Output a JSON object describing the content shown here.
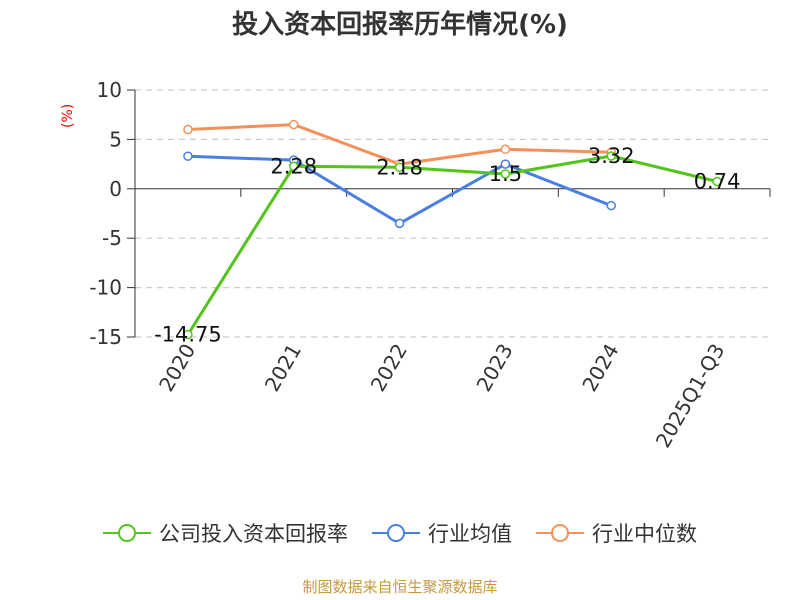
{
  "chart_data": {
    "type": "line",
    "title": "投入资本回报率历年情况(%)",
    "ylabel": "(%)",
    "categories": [
      "2020",
      "2021",
      "2022",
      "2023",
      "2024",
      "2025Q1-Q3"
    ],
    "ylim": [
      -15,
      10
    ],
    "yticks": [
      10,
      5,
      0,
      -5,
      -10,
      -15
    ],
    "grid": true,
    "legend_position": "bottom",
    "series": [
      {
        "name": "公司投入资本回报率",
        "color": "#52c41a",
        "values": [
          -14.75,
          2.28,
          2.18,
          1.5,
          3.32,
          0.74
        ],
        "labels": [
          "-14.75",
          "2.28",
          "2.18",
          "1.5",
          "3.32",
          "0.74"
        ]
      },
      {
        "name": "行业均值",
        "color": "#4a7fe0",
        "values": [
          3.3,
          2.9,
          -3.5,
          2.5,
          -1.7,
          null
        ]
      },
      {
        "name": "行业中位数",
        "color": "#f4915a",
        "values": [
          6.0,
          6.5,
          2.5,
          4.0,
          3.7,
          null
        ]
      }
    ]
  },
  "source": "制图数据来自恒生聚源数据库"
}
